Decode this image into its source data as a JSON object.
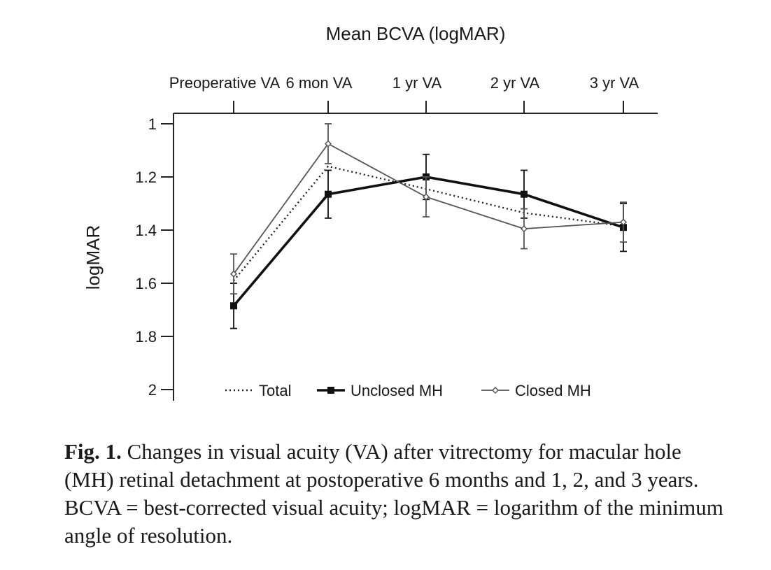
{
  "chart_data": {
    "type": "line",
    "title": "Mean BCVA (logMAR)",
    "xlabel": "",
    "ylabel": "logMAR",
    "categories": [
      "Preoperative VA",
      "6 mon VA",
      "1 yr VA",
      "2 yr VA",
      "3 yr VA"
    ],
    "x_axis_position": "top",
    "y_inverted": true,
    "ylim": [
      1,
      2
    ],
    "yticks": [
      "1",
      "1.2",
      "1.4",
      "1.6",
      "1.8",
      "2"
    ],
    "ytick_values": [
      1,
      1.2,
      1.4,
      1.6,
      1.8,
      2
    ],
    "grid": false,
    "legend_position": "bottom",
    "series": [
      {
        "name": "Total",
        "style": "dotted",
        "color": "#222222",
        "values": [
          1.59,
          1.16,
          1.245,
          1.335,
          1.385
        ],
        "errors": []
      },
      {
        "name": "Unclosed MH",
        "style": "bold-square",
        "color": "#111111",
        "values": [
          1.685,
          1.265,
          1.2,
          1.265,
          1.39
        ],
        "errors": [
          0.085,
          0.09,
          0.085,
          0.09,
          0.09
        ]
      },
      {
        "name": "Closed MH",
        "style": "thin-diamond",
        "color": "#555555",
        "values": [
          1.565,
          1.075,
          1.275,
          1.395,
          1.37
        ],
        "errors": [
          0.075,
          0.075,
          0.075,
          0.075,
          0.075
        ]
      }
    ]
  },
  "caption": {
    "label": "Fig. 1.",
    "text": " Changes in visual acuity (VA) after vitrectomy for macular hole (MH) retinal detachment at postoperative 6 months and 1, 2, and 3 years. BCVA = best-corrected visual acuity; logMAR = logarithm of the minimum angle of resolution."
  }
}
